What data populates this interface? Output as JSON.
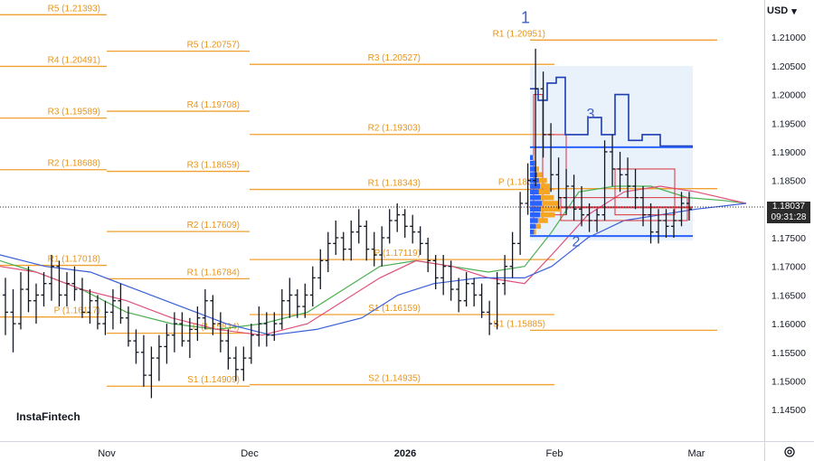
{
  "header": {
    "currency": "USD"
  },
  "brand": "InstaFintech",
  "price_tag": {
    "price": "1.18037",
    "time": "09:31:28"
  },
  "colors": {
    "pivot": "#f0a030",
    "pivot_text": "#e8941a",
    "annotation": "#3d5fc4",
    "ma_fast": "#4caf50",
    "ma_mid": "#e0507a",
    "ma_slow": "#3a5fd8",
    "profile_blue": "#2962ff",
    "profile_orange": "#f5a623",
    "va_box": "#e3eefa",
    "value_line": "#1e3cb4",
    "red_box": "#d9303a"
  },
  "chart_data": {
    "type": "ohlc",
    "y_axis": {
      "range": [
        1.1395,
        1.2165
      ],
      "ticks": [
        "1.21000",
        "1.20500",
        "1.20000",
        "1.19500",
        "1.19000",
        "1.18500",
        "1.18000",
        "1.17500",
        "1.17000",
        "1.16500",
        "1.16000",
        "1.15500",
        "1.15000",
        "1.14500"
      ]
    },
    "x_axis": {
      "labels": [
        "Nov",
        "Dec",
        "2026",
        "Feb",
        "Mar"
      ]
    },
    "last_price": 1.18037,
    "annotations": [
      "1",
      "2",
      "3"
    ],
    "pivot_levels": [
      {
        "period": 1,
        "label": "R5 (1.21393)",
        "value": 1.21393
      },
      {
        "period": 1,
        "label": "R4 (1.20491)",
        "value": 1.20491
      },
      {
        "period": 1,
        "label": "R3 (1.19589)",
        "value": 1.19589
      },
      {
        "period": 1,
        "label": "R2 (1.18688)",
        "value": 1.18688
      },
      {
        "period": 1,
        "label": "R1 (1.17018)",
        "value": 1.17018
      },
      {
        "period": 1,
        "label": "P (1.16117)",
        "value": 1.16117
      },
      {
        "period": 2,
        "label": "R5 (1.20757)",
        "value": 1.20757
      },
      {
        "period": 2,
        "label": "R4 (1.19708)",
        "value": 1.19708
      },
      {
        "period": 2,
        "label": "R3 (1.18659)",
        "value": 1.18659
      },
      {
        "period": 2,
        "label": "R2 (1.17609)",
        "value": 1.17609
      },
      {
        "period": 2,
        "label": "R1 (1.16784)",
        "value": 1.16784
      },
      {
        "period": 2,
        "label": "P (1.15834)",
        "value": 1.15834
      },
      {
        "period": 2,
        "label": "S1 (1.14909)",
        "value": 1.14909
      },
      {
        "period": 3,
        "label": "R3 (1.20527)",
        "value": 1.20527
      },
      {
        "period": 3,
        "label": "R2 (1.19303)",
        "value": 1.19303
      },
      {
        "period": 3,
        "label": "R1 (1.18343)",
        "value": 1.18343
      },
      {
        "period": 3,
        "label": "P (1.17119)",
        "value": 1.17119
      },
      {
        "period": 3,
        "label": "S1 (1.16159)",
        "value": 1.16159
      },
      {
        "period": 3,
        "label": "S2 (1.14935)",
        "value": 1.14935
      },
      {
        "period": 4,
        "label": "R1 (1.20951)",
        "value": 1.20951
      },
      {
        "period": 4,
        "label": "P (1.18357)",
        "value": 1.18357
      },
      {
        "period": 4,
        "label": "S1 (1.15885)",
        "value": 1.15885
      }
    ],
    "bars": [
      [
        1.165,
        1.168,
        1.158,
        1.162
      ],
      [
        1.162,
        1.166,
        1.155,
        1.16
      ],
      [
        1.16,
        1.169,
        1.159,
        1.166
      ],
      [
        1.166,
        1.17,
        1.162,
        1.164
      ],
      [
        1.164,
        1.167,
        1.16,
        1.165
      ],
      [
        1.165,
        1.169,
        1.163,
        1.167
      ],
      [
        1.167,
        1.172,
        1.164,
        1.17
      ],
      [
        1.17,
        1.171,
        1.163,
        1.165
      ],
      [
        1.165,
        1.169,
        1.163,
        1.167
      ],
      [
        1.167,
        1.17,
        1.164,
        1.166
      ],
      [
        1.166,
        1.168,
        1.161,
        1.162
      ],
      [
        1.162,
        1.166,
        1.16,
        1.164
      ],
      [
        1.164,
        1.165,
        1.159,
        1.16
      ],
      [
        1.16,
        1.164,
        1.158,
        1.162
      ],
      [
        1.162,
        1.166,
        1.159,
        1.164
      ],
      [
        1.164,
        1.167,
        1.16,
        1.161
      ],
      [
        1.161,
        1.163,
        1.156,
        1.157
      ],
      [
        1.157,
        1.159,
        1.153,
        1.155
      ],
      [
        1.155,
        1.158,
        1.149,
        1.151
      ],
      [
        1.151,
        1.156,
        1.147,
        1.154
      ],
      [
        1.154,
        1.158,
        1.15,
        1.156
      ],
      [
        1.156,
        1.16,
        1.153,
        1.158
      ],
      [
        1.158,
        1.162,
        1.155,
        1.16
      ],
      [
        1.16,
        1.162,
        1.156,
        1.157
      ],
      [
        1.157,
        1.161,
        1.154,
        1.159
      ],
      [
        1.159,
        1.163,
        1.157,
        1.161
      ],
      [
        1.161,
        1.166,
        1.159,
        1.164
      ],
      [
        1.164,
        1.165,
        1.158,
        1.16
      ],
      [
        1.16,
        1.162,
        1.155,
        1.157
      ],
      [
        1.157,
        1.159,
        1.152,
        1.154
      ],
      [
        1.154,
        1.156,
        1.15,
        1.152
      ],
      [
        1.152,
        1.156,
        1.15,
        1.154
      ],
      [
        1.154,
        1.16,
        1.153,
        1.158
      ],
      [
        1.158,
        1.163,
        1.156,
        1.16
      ],
      [
        1.16,
        1.162,
        1.156,
        1.158
      ],
      [
        1.158,
        1.162,
        1.157,
        1.16
      ],
      [
        1.16,
        1.166,
        1.159,
        1.164
      ],
      [
        1.164,
        1.168,
        1.161,
        1.165
      ],
      [
        1.165,
        1.166,
        1.161,
        1.163
      ],
      [
        1.163,
        1.167,
        1.161,
        1.165
      ],
      [
        1.165,
        1.17,
        1.163,
        1.168
      ],
      [
        1.168,
        1.173,
        1.166,
        1.171
      ],
      [
        1.171,
        1.176,
        1.169,
        1.174
      ],
      [
        1.174,
        1.178,
        1.172,
        1.175
      ],
      [
        1.175,
        1.176,
        1.171,
        1.173
      ],
      [
        1.173,
        1.178,
        1.171,
        1.176
      ],
      [
        1.176,
        1.18,
        1.174,
        1.177
      ],
      [
        1.177,
        1.178,
        1.171,
        1.173
      ],
      [
        1.173,
        1.176,
        1.17,
        1.172
      ],
      [
        1.172,
        1.177,
        1.17,
        1.175
      ],
      [
        1.175,
        1.18,
        1.174,
        1.178
      ],
      [
        1.178,
        1.181,
        1.176,
        1.179
      ],
      [
        1.179,
        1.18,
        1.175,
        1.177
      ],
      [
        1.177,
        1.179,
        1.174,
        1.176
      ],
      [
        1.176,
        1.177,
        1.172,
        1.174
      ],
      [
        1.174,
        1.175,
        1.169,
        1.171
      ],
      [
        1.171,
        1.172,
        1.166,
        1.168
      ],
      [
        1.168,
        1.172,
        1.165,
        1.17
      ],
      [
        1.17,
        1.171,
        1.164,
        1.166
      ],
      [
        1.166,
        1.168,
        1.162,
        1.164
      ],
      [
        1.164,
        1.169,
        1.163,
        1.167
      ],
      [
        1.167,
        1.168,
        1.163,
        1.165
      ],
      [
        1.165,
        1.167,
        1.161,
        1.162
      ],
      [
        1.162,
        1.164,
        1.158,
        1.16
      ],
      [
        1.16,
        1.169,
        1.159,
        1.167
      ],
      [
        1.167,
        1.172,
        1.165,
        1.17
      ],
      [
        1.17,
        1.176,
        1.168,
        1.174
      ],
      [
        1.174,
        1.183,
        1.172,
        1.181
      ],
      [
        1.181,
        1.188,
        1.179,
        1.185
      ],
      [
        1.185,
        1.208,
        1.184,
        1.201
      ],
      [
        1.201,
        1.204,
        1.189,
        1.193
      ],
      [
        1.193,
        1.195,
        1.183,
        1.186
      ],
      [
        1.186,
        1.189,
        1.18,
        1.182
      ],
      [
        1.182,
        1.187,
        1.179,
        1.184
      ],
      [
        1.184,
        1.186,
        1.178,
        1.18
      ],
      [
        1.18,
        1.184,
        1.177,
        1.179
      ],
      [
        1.179,
        1.181,
        1.176,
        1.178
      ],
      [
        1.178,
        1.18,
        1.176,
        1.179
      ],
      [
        1.179,
        1.192,
        1.178,
        1.19
      ],
      [
        1.19,
        1.193,
        1.184,
        1.187
      ],
      [
        1.187,
        1.19,
        1.183,
        1.186
      ],
      [
        1.186,
        1.189,
        1.182,
        1.184
      ],
      [
        1.184,
        1.187,
        1.18,
        1.182
      ],
      [
        1.182,
        1.184,
        1.177,
        1.179
      ],
      [
        1.179,
        1.181,
        1.174,
        1.176
      ],
      [
        1.176,
        1.18,
        1.174,
        1.178
      ],
      [
        1.178,
        1.18,
        1.175,
        1.177
      ],
      [
        1.177,
        1.18,
        1.175,
        1.178
      ],
      [
        1.178,
        1.183,
        1.177,
        1.181
      ],
      [
        1.181,
        1.183,
        1.178,
        1.18
      ]
    ]
  }
}
